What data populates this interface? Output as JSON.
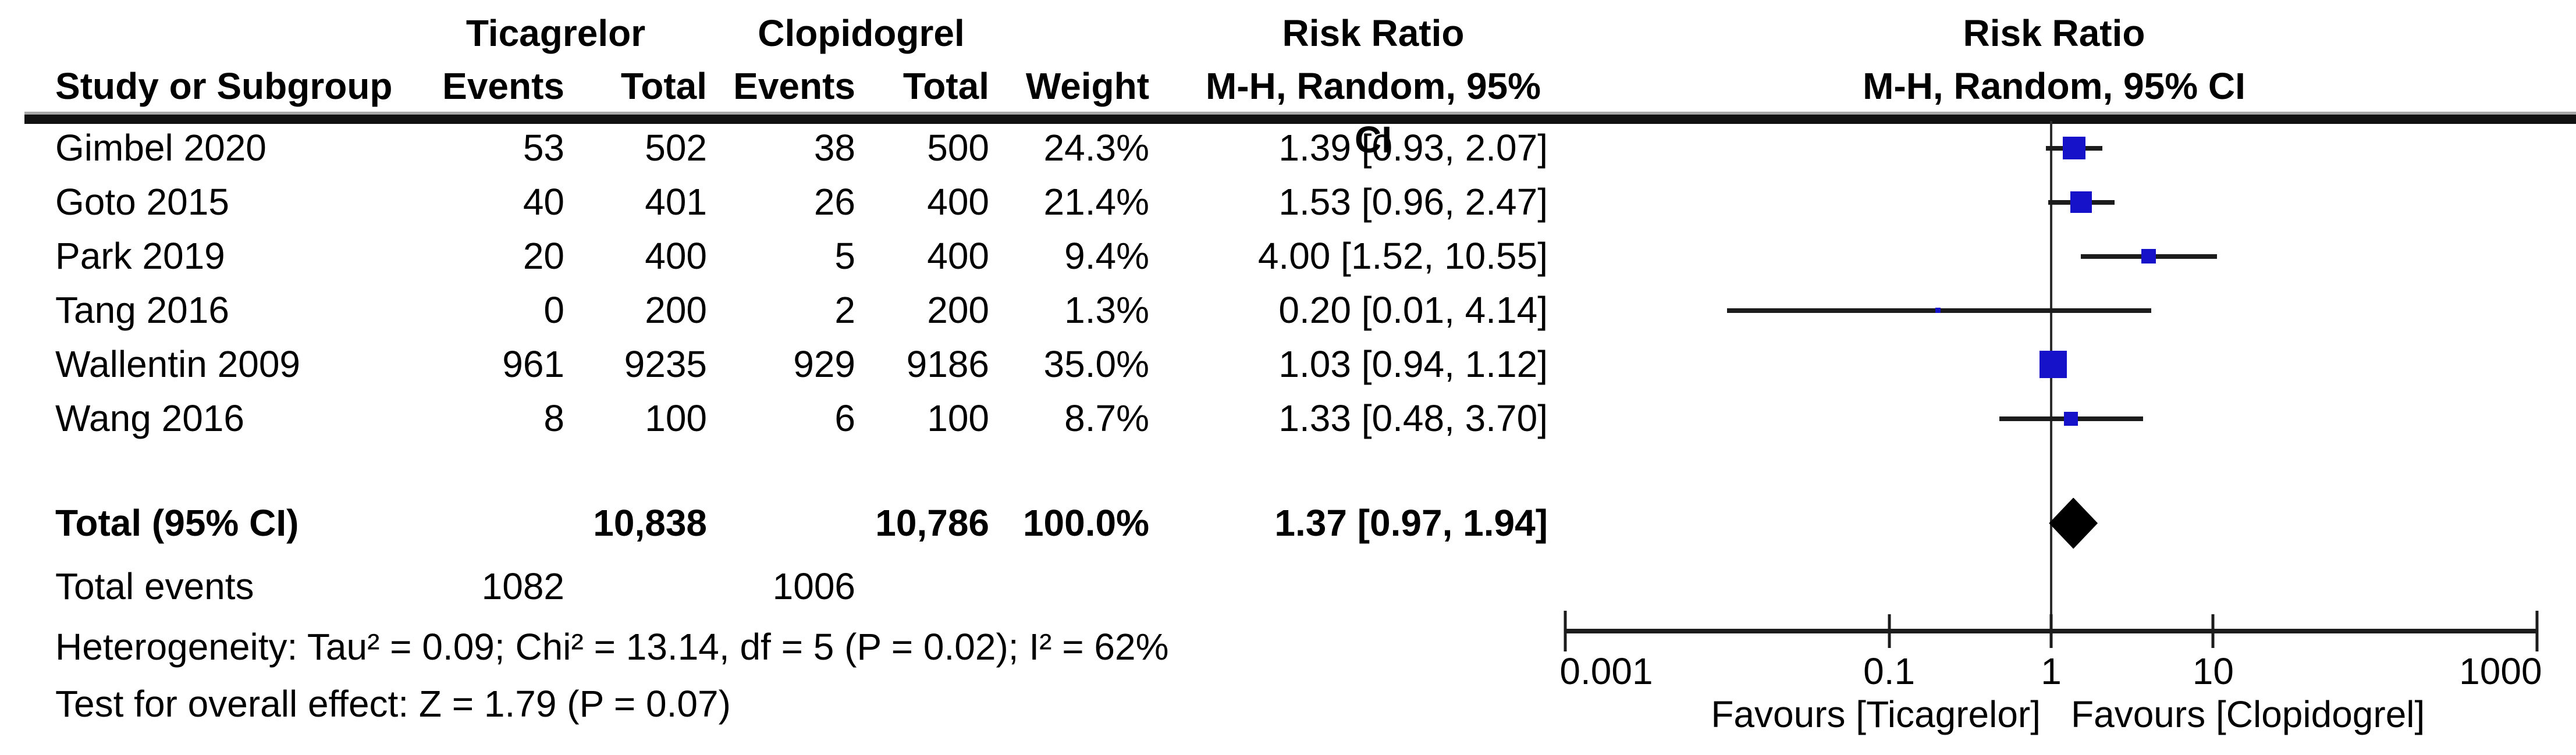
{
  "table": {
    "group1": "Ticagrelor",
    "group2": "Clopidogrel",
    "rr_header_line1": "Risk Ratio",
    "rr_header_line2": "M-H, Random, 95% CI",
    "col_study": "Study or Subgroup",
    "col_events": "Events",
    "col_total": "Total",
    "col_weight": "Weight",
    "total_events_label": "Total events",
    "total_events_ticagrelor": "1082",
    "total_events_clopidogrel": "1006",
    "heterogeneity": "Heterogeneity: Tau² = 0.09; Chi² = 13.14, df = 5 (P = 0.02); I² = 62%",
    "overall_effect": "Test for overall effect: Z = 1.79 (P = 0.07)"
  },
  "plot": {
    "header_line1": "Risk Ratio",
    "header_line2": "M-H, Random, 95% CI",
    "favours_left": "Favours [Ticagrelor]",
    "favours_right": "Favours [Clopidogrel]",
    "marker_color": "#1612c9",
    "ci_color": "#1c1c1c",
    "diamond_color": "#000000"
  },
  "chart_data": {
    "type": "forest",
    "effect_measure": "Risk Ratio",
    "method": "M-H, Random, 95% CI",
    "x_scale": "log10",
    "x_min": 0.001,
    "x_max": 1000,
    "axis_ticks": [
      {
        "v": 0.001,
        "label": "0.001"
      },
      {
        "v": 0.1,
        "label": "0.1"
      },
      {
        "v": 1,
        "label": "1"
      },
      {
        "v": 10,
        "label": "10"
      },
      {
        "v": 1000,
        "label": "1000"
      }
    ],
    "studies": [
      {
        "name": "Gimbel 2020",
        "t_events": "53",
        "t_total": "502",
        "c_events": "38",
        "c_total": "500",
        "weight_label": "24.3%",
        "weight": 24.3,
        "rr_label": "1.39 [0.93, 2.07]",
        "est": 1.39,
        "lo": 0.93,
        "hi": 2.07
      },
      {
        "name": "Goto 2015",
        "t_events": "40",
        "t_total": "401",
        "c_events": "26",
        "c_total": "400",
        "weight_label": "21.4%",
        "weight": 21.4,
        "rr_label": "1.53 [0.96, 2.47]",
        "est": 1.53,
        "lo": 0.96,
        "hi": 2.47
      },
      {
        "name": "Park 2019",
        "t_events": "20",
        "t_total": "400",
        "c_events": "5",
        "c_total": "400",
        "weight_label": "9.4%",
        "weight": 9.4,
        "rr_label": "4.00 [1.52, 10.55]",
        "est": 4.0,
        "lo": 1.52,
        "hi": 10.55
      },
      {
        "name": "Tang 2016",
        "t_events": "0",
        "t_total": "200",
        "c_events": "2",
        "c_total": "200",
        "weight_label": "1.3%",
        "weight": 1.3,
        "rr_label": "0.20 [0.01, 4.14]",
        "est": 0.2,
        "lo": 0.01,
        "hi": 4.14
      },
      {
        "name": "Wallentin 2009",
        "t_events": "961",
        "t_total": "9235",
        "c_events": "929",
        "c_total": "9186",
        "weight_label": "35.0%",
        "weight": 35.0,
        "rr_label": "1.03 [0.94, 1.12]",
        "est": 1.03,
        "lo": 0.94,
        "hi": 1.12
      },
      {
        "name": "Wang 2016",
        "t_events": "8",
        "t_total": "100",
        "c_events": "6",
        "c_total": "100",
        "weight_label": "8.7%",
        "weight": 8.7,
        "rr_label": "1.33 [0.48, 3.70]",
        "est": 1.33,
        "lo": 0.48,
        "hi": 3.7
      }
    ],
    "total": {
      "label": "Total (95% CI)",
      "t_total": "10,838",
      "c_total": "10,786",
      "weight_label": "100.0%",
      "rr_label": "1.37 [0.97, 1.94]",
      "est": 1.37,
      "lo": 0.97,
      "hi": 1.94
    }
  }
}
